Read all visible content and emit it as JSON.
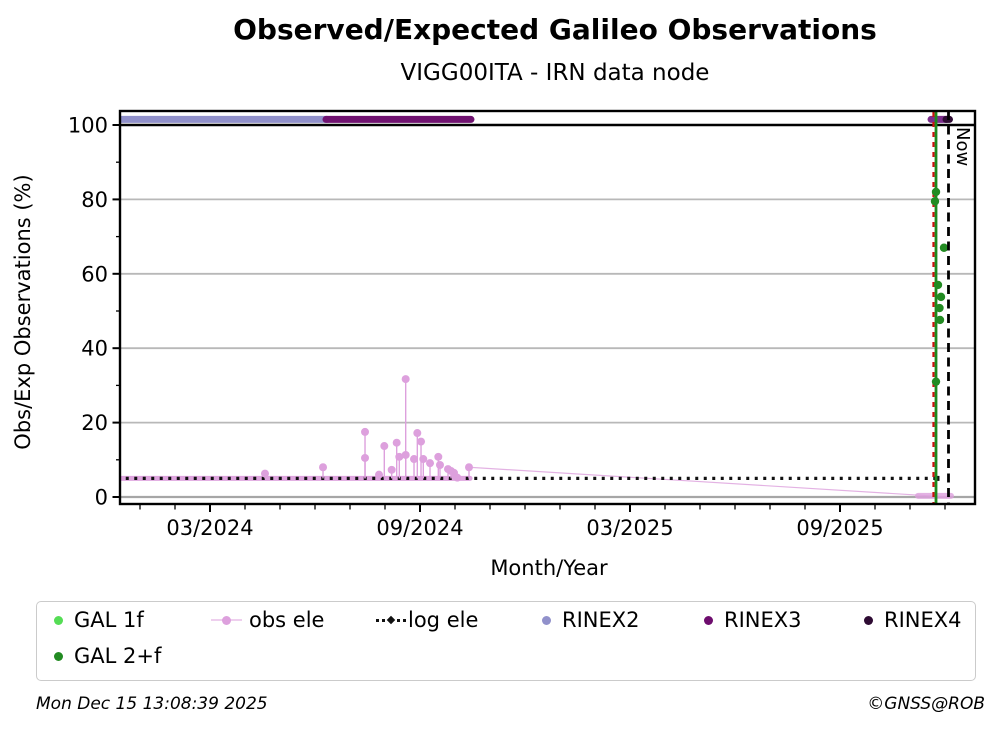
{
  "footer": {
    "timestamp": "Mon Dec 15 13:08:39 2025",
    "credit": "©GNSS@ROB"
  },
  "legend": {
    "items": [
      {
        "label": "GAL 1f",
        "marker": "dot",
        "color": "#55dd55"
      },
      {
        "label": "obs ele",
        "marker": "line-dot",
        "color": "#dda0dd"
      },
      {
        "label": "log ele",
        "marker": "dotted-line",
        "color": "#111111"
      },
      {
        "label": "RINEX2",
        "marker": "dot",
        "color": "#9191cb"
      },
      {
        "label": "RINEX3",
        "marker": "dot",
        "color": "#6e0d6e"
      },
      {
        "label": "RINEX4",
        "marker": "dot",
        "color": "#2e0b33"
      },
      {
        "label": "GAL 2+f",
        "marker": "dot",
        "color": "#228b22"
      }
    ]
  },
  "chart_data": {
    "type": "scatter",
    "title": "Observed/Expected Galileo Observations",
    "subtitle": "VIGG00ITA - IRN data node",
    "xlabel": "Month/Year",
    "ylabel": "Obs/Exp Observations (%)",
    "x_unit": "months since 2024-01 (0 = Jan 2024)",
    "x_range": [
      -0.57,
      23.86
    ],
    "y_range": [
      -1.9,
      103.8
    ],
    "x_ticks": [
      {
        "m": 2,
        "label": "03/2024"
      },
      {
        "m": 8,
        "label": "09/2024"
      },
      {
        "m": 14,
        "label": "03/2025"
      },
      {
        "m": 20,
        "label": "09/2025"
      }
    ],
    "x_minor_tick_months": [
      0,
      1,
      3,
      4,
      5,
      6,
      7,
      9,
      10,
      11,
      12,
      13,
      15,
      16,
      17,
      18,
      19,
      21,
      22,
      23
    ],
    "y_ticks": [
      0,
      20,
      40,
      60,
      80,
      100
    ],
    "y_minor_ticks": [
      10,
      30,
      50,
      70,
      90
    ],
    "grid_color": "#b8b8b8",
    "hundred_line_color": "#000000",
    "series": {
      "rinex_bands": [
        {
          "name": "RINEX2",
          "from_m": -0.65,
          "to_m": 5.343,
          "value": 101.5,
          "color": "#9090ca"
        },
        {
          "name": "RINEX3",
          "from_m": 5.314,
          "to_m": 9.457,
          "value": 101.5,
          "color": "#701270"
        },
        {
          "name": "RINEX3",
          "from_m": 22.6,
          "to_m": 23.043,
          "value": 101.5,
          "color": "#7b2d8b"
        },
        {
          "name": "RINEX4",
          "from_m": 23.029,
          "to_m": 23.129,
          "value": 101.5,
          "color": "#2e0b33"
        }
      ],
      "obs_ele": {
        "color": "#dda0dd",
        "baseline_value": 5,
        "baseline_from_m": -0.65,
        "baseline_to_m": 9.429,
        "points": [
          [
            3.571,
            6.3
          ],
          [
            5.229,
            8
          ],
          [
            6.429,
            17.5
          ],
          [
            6.429,
            10.5
          ],
          [
            6.829,
            6
          ],
          [
            6.98,
            13.7
          ],
          [
            7.191,
            7.3
          ],
          [
            7.334,
            14.6
          ],
          [
            7.409,
            10.8
          ],
          [
            7.591,
            31.7
          ],
          [
            7.591,
            11.3
          ],
          [
            7.829,
            10.2
          ],
          [
            7.923,
            17.2
          ],
          [
            8.029,
            14.9
          ],
          [
            8.094,
            10.2
          ],
          [
            8.286,
            9.1
          ],
          [
            8.523,
            10.8
          ],
          [
            8.571,
            8.6
          ],
          [
            8.8,
            7.5
          ],
          [
            8.886,
            7
          ],
          [
            8.971,
            6.5
          ],
          [
            9.066,
            5.2
          ],
          [
            9.4,
            8
          ]
        ],
        "tail_line": [
          [
            9.4,
            8
          ],
          [
            23.1,
            0
          ]
        ],
        "end_cluster": {
          "from_m": 22.229,
          "to_m": 23.171,
          "value": 0.3
        }
      },
      "log_ele": {
        "value": 5,
        "from_m": -0.65,
        "to_m": 22.771,
        "style": "dotted",
        "color": "#111111"
      },
      "gal_1f_points": [],
      "gal_1f_color": "#55dd55",
      "gal_2f_points": [
        [
          22.743,
          82
        ],
        [
          22.714,
          79.5
        ],
        [
          22.971,
          67
        ],
        [
          22.8,
          57
        ],
        [
          22.886,
          53.8
        ],
        [
          22.843,
          50.8
        ],
        [
          22.857,
          47.6
        ],
        [
          22.743,
          31
        ]
      ],
      "gal_2f_color": "#228b22",
      "last_obs_line": {
        "m": 22.743,
        "color": "#1e8a1e",
        "red_dash_m": 22.671,
        "red_color": "#cc1111"
      },
      "now_line": {
        "m": 23.1,
        "label": "Now",
        "color": "#000000"
      }
    }
  }
}
